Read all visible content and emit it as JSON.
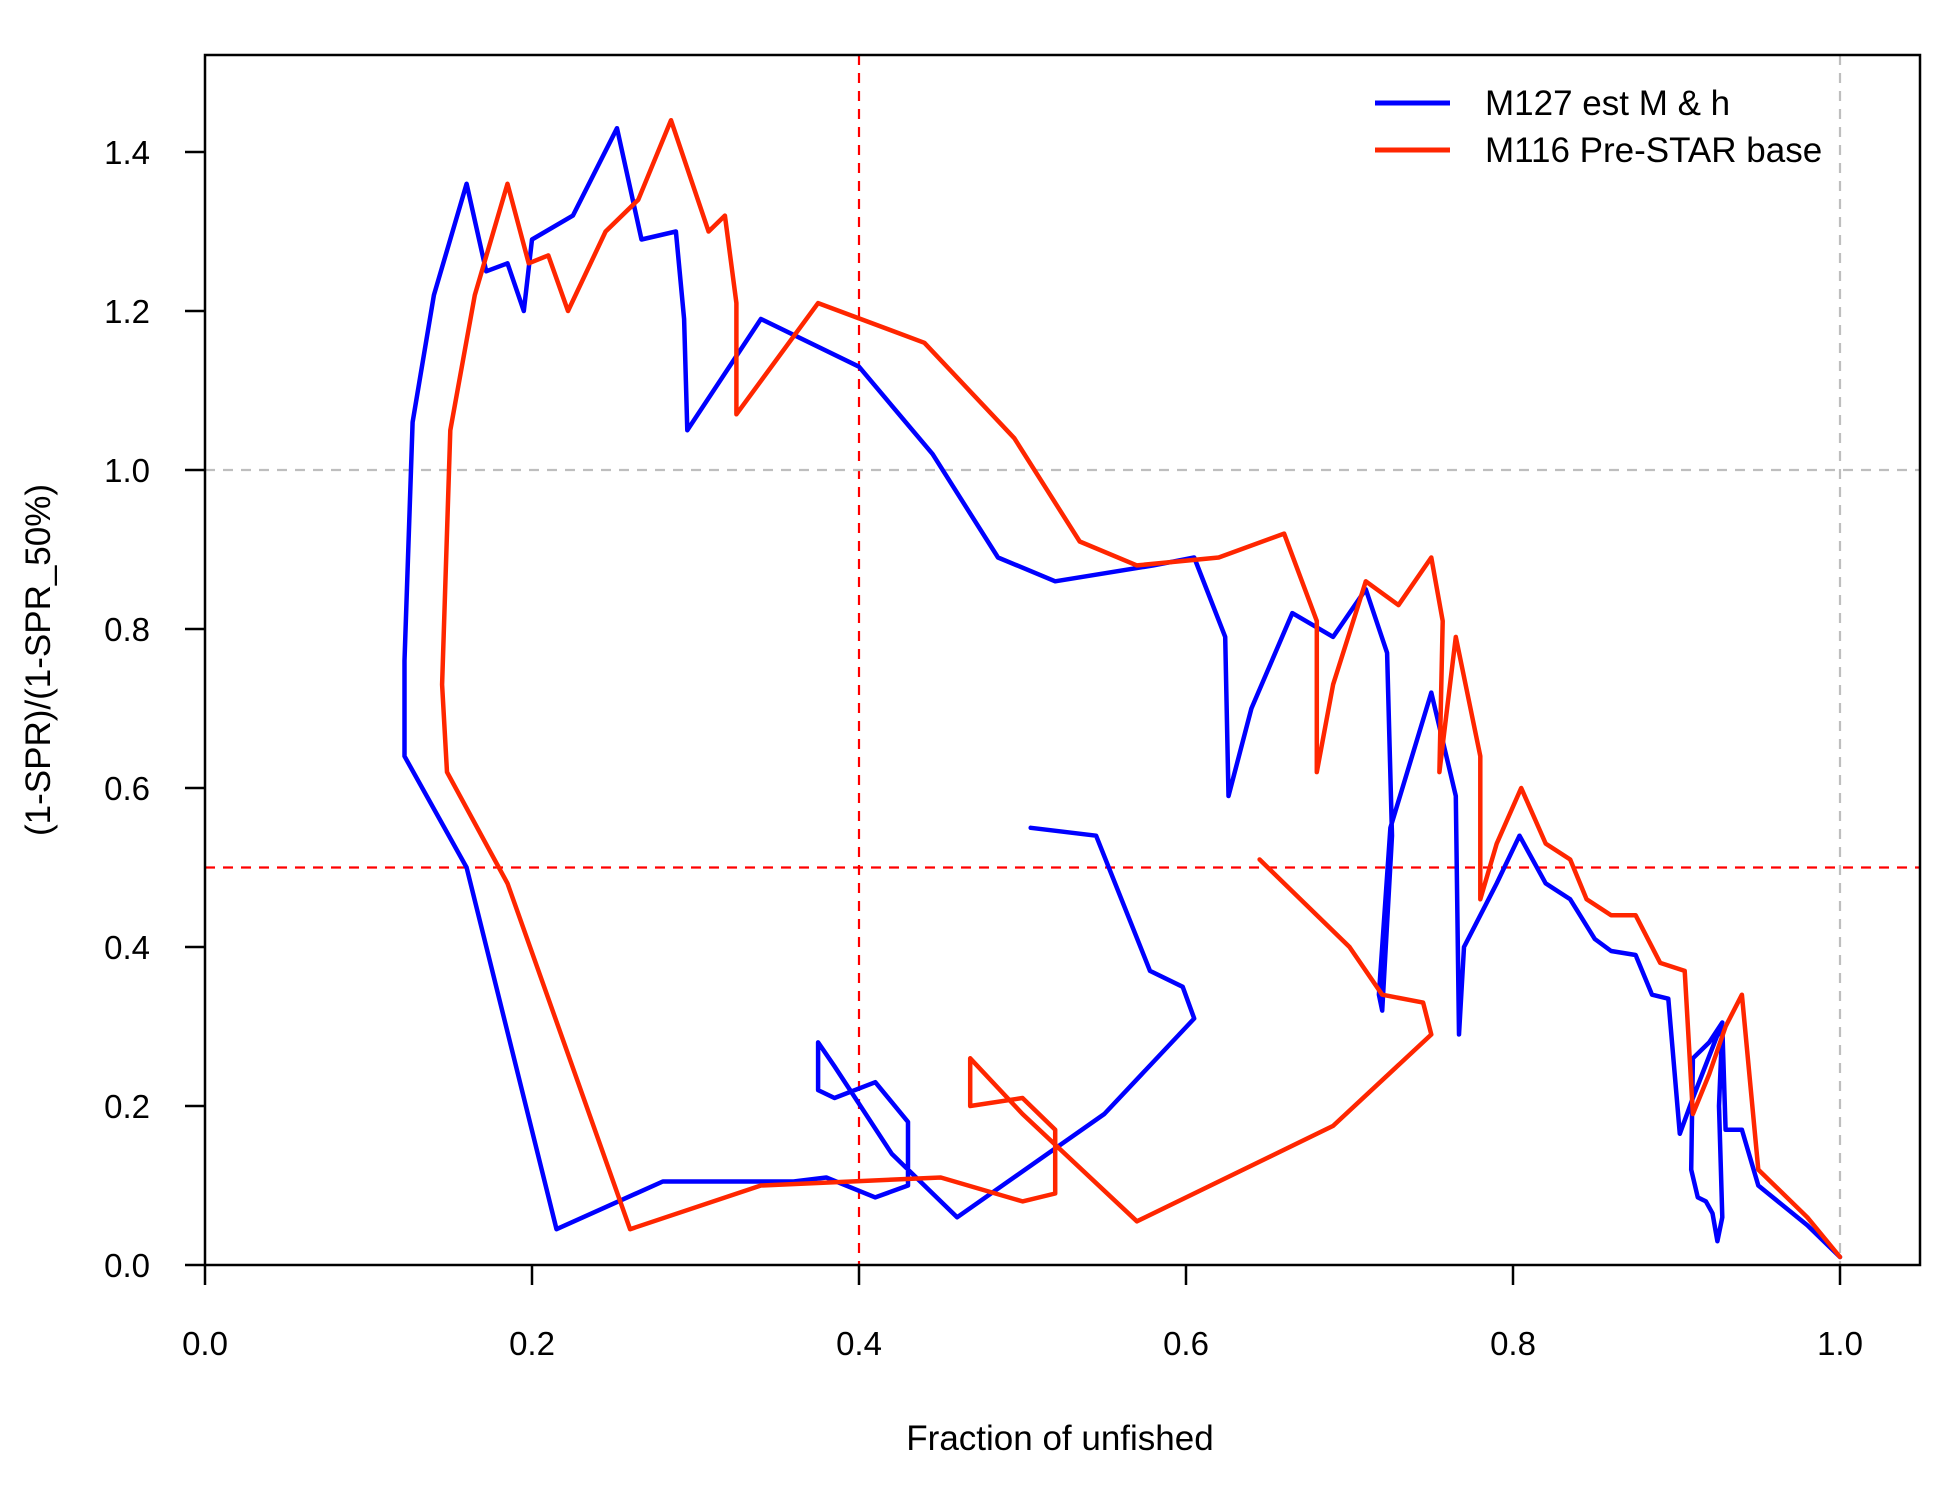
{
  "chart_data": {
    "type": "line",
    "title": "",
    "xlabel": "Fraction of unfished",
    "ylabel": "(1-SPR)/(1-SPR_50%)",
    "xlim": [
      0.0,
      1.05
    ],
    "ylim": [
      0.0,
      1.52
    ],
    "x_ticks": [
      "0.0",
      "0.2",
      "0.4",
      "0.6",
      "0.8",
      "1.0"
    ],
    "y_ticks": [
      "0.0",
      "0.2",
      "0.4",
      "0.6",
      "0.8",
      "1.0",
      "1.2",
      "1.4"
    ],
    "grid": false,
    "legend_position": "top-right",
    "reference_lines": [
      {
        "orientation": "vertical",
        "value": 0.4,
        "color": "#ff0000",
        "style": "dashed"
      },
      {
        "orientation": "horizontal",
        "value": 0.5,
        "color": "#ff0000",
        "style": "dashed"
      },
      {
        "orientation": "vertical",
        "value": 1.0,
        "color": "#bebebe",
        "style": "dashed"
      },
      {
        "orientation": "horizontal",
        "value": 1.0,
        "color": "#bebebe",
        "style": "dashed"
      }
    ],
    "series": [
      {
        "name": "M127 est M & h",
        "color": "#0000ff",
        "points": [
          [
            1.0,
            0.01
          ],
          [
            0.98,
            0.05
          ],
          [
            0.95,
            0.1
          ],
          [
            0.94,
            0.17
          ],
          [
            0.93,
            0.17
          ],
          [
            0.928,
            0.3
          ],
          [
            0.926,
            0.2
          ],
          [
            0.928,
            0.06
          ],
          [
            0.925,
            0.03
          ],
          [
            0.922,
            0.065
          ],
          [
            0.918,
            0.08
          ],
          [
            0.913,
            0.085
          ],
          [
            0.909,
            0.12
          ],
          [
            0.91,
            0.26
          ],
          [
            0.92,
            0.28
          ],
          [
            0.928,
            0.305
          ],
          [
            0.91,
            0.21
          ],
          [
            0.902,
            0.165
          ],
          [
            0.895,
            0.335
          ],
          [
            0.885,
            0.34
          ],
          [
            0.875,
            0.39
          ],
          [
            0.86,
            0.395
          ],
          [
            0.85,
            0.41
          ],
          [
            0.835,
            0.46
          ],
          [
            0.82,
            0.48
          ],
          [
            0.804,
            0.54
          ],
          [
            0.79,
            0.48
          ],
          [
            0.77,
            0.4
          ],
          [
            0.767,
            0.29
          ],
          [
            0.765,
            0.59
          ],
          [
            0.75,
            0.72
          ],
          [
            0.725,
            0.55
          ],
          [
            0.718,
            0.34
          ],
          [
            0.72,
            0.32
          ],
          [
            0.726,
            0.54
          ],
          [
            0.723,
            0.77
          ],
          [
            0.71,
            0.85
          ],
          [
            0.69,
            0.79
          ],
          [
            0.665,
            0.82
          ],
          [
            0.64,
            0.7
          ],
          [
            0.626,
            0.59
          ],
          [
            0.624,
            0.79
          ],
          [
            0.605,
            0.89
          ],
          [
            0.58,
            0.88
          ],
          [
            0.52,
            0.86
          ],
          [
            0.485,
            0.89
          ],
          [
            0.445,
            1.02
          ],
          [
            0.4,
            1.13
          ],
          [
            0.34,
            1.19
          ],
          [
            0.295,
            1.05
          ],
          [
            0.293,
            1.19
          ],
          [
            0.288,
            1.3
          ],
          [
            0.267,
            1.29
          ],
          [
            0.252,
            1.43
          ],
          [
            0.225,
            1.32
          ],
          [
            0.2,
            1.29
          ],
          [
            0.195,
            1.2
          ],
          [
            0.185,
            1.26
          ],
          [
            0.172,
            1.25
          ],
          [
            0.16,
            1.36
          ],
          [
            0.14,
            1.22
          ],
          [
            0.127,
            1.06
          ],
          [
            0.122,
            0.76
          ],
          [
            0.122,
            0.64
          ],
          [
            0.16,
            0.5
          ],
          [
            0.215,
            0.045
          ],
          [
            0.28,
            0.105
          ],
          [
            0.36,
            0.105
          ],
          [
            0.38,
            0.11
          ],
          [
            0.41,
            0.085
          ],
          [
            0.43,
            0.1
          ],
          [
            0.43,
            0.18
          ],
          [
            0.41,
            0.23
          ],
          [
            0.385,
            0.21
          ],
          [
            0.375,
            0.22
          ],
          [
            0.375,
            0.28
          ],
          [
            0.385,
            0.25
          ],
          [
            0.42,
            0.14
          ],
          [
            0.46,
            0.06
          ],
          [
            0.55,
            0.19
          ],
          [
            0.605,
            0.31
          ],
          [
            0.598,
            0.35
          ],
          [
            0.578,
            0.37
          ],
          [
            0.545,
            0.54
          ],
          [
            0.505,
            0.55
          ]
        ]
      },
      {
        "name": "M116 Pre-STAR base",
        "color": "#ff2600",
        "points": [
          [
            1.0,
            0.01
          ],
          [
            0.98,
            0.06
          ],
          [
            0.95,
            0.12
          ],
          [
            0.94,
            0.34
          ],
          [
            0.93,
            0.3
          ],
          [
            0.92,
            0.24
          ],
          [
            0.91,
            0.19
          ],
          [
            0.905,
            0.37
          ],
          [
            0.89,
            0.38
          ],
          [
            0.875,
            0.44
          ],
          [
            0.86,
            0.44
          ],
          [
            0.845,
            0.46
          ],
          [
            0.835,
            0.51
          ],
          [
            0.82,
            0.53
          ],
          [
            0.805,
            0.6
          ],
          [
            0.79,
            0.53
          ],
          [
            0.78,
            0.46
          ],
          [
            0.78,
            0.64
          ],
          [
            0.765,
            0.79
          ],
          [
            0.755,
            0.62
          ],
          [
            0.757,
            0.81
          ],
          [
            0.75,
            0.89
          ],
          [
            0.73,
            0.83
          ],
          [
            0.71,
            0.86
          ],
          [
            0.69,
            0.73
          ],
          [
            0.68,
            0.62
          ],
          [
            0.68,
            0.81
          ],
          [
            0.66,
            0.92
          ],
          [
            0.62,
            0.89
          ],
          [
            0.57,
            0.88
          ],
          [
            0.535,
            0.91
          ],
          [
            0.495,
            1.04
          ],
          [
            0.44,
            1.16
          ],
          [
            0.375,
            1.21
          ],
          [
            0.325,
            1.07
          ],
          [
            0.325,
            1.21
          ],
          [
            0.318,
            1.32
          ],
          [
            0.308,
            1.3
          ],
          [
            0.285,
            1.44
          ],
          [
            0.265,
            1.34
          ],
          [
            0.245,
            1.3
          ],
          [
            0.222,
            1.2
          ],
          [
            0.21,
            1.27
          ],
          [
            0.198,
            1.26
          ],
          [
            0.185,
            1.36
          ],
          [
            0.165,
            1.22
          ],
          [
            0.15,
            1.05
          ],
          [
            0.145,
            0.73
          ],
          [
            0.148,
            0.62
          ],
          [
            0.185,
            0.48
          ],
          [
            0.26,
            0.045
          ],
          [
            0.34,
            0.1
          ],
          [
            0.45,
            0.11
          ],
          [
            0.5,
            0.08
          ],
          [
            0.52,
            0.09
          ],
          [
            0.52,
            0.17
          ],
          [
            0.5,
            0.21
          ],
          [
            0.468,
            0.2
          ],
          [
            0.468,
            0.26
          ],
          [
            0.5,
            0.19
          ],
          [
            0.57,
            0.055
          ],
          [
            0.69,
            0.175
          ],
          [
            0.75,
            0.29
          ],
          [
            0.745,
            0.33
          ],
          [
            0.72,
            0.34
          ],
          [
            0.7,
            0.4
          ],
          [
            0.645,
            0.51
          ]
        ]
      }
    ]
  }
}
